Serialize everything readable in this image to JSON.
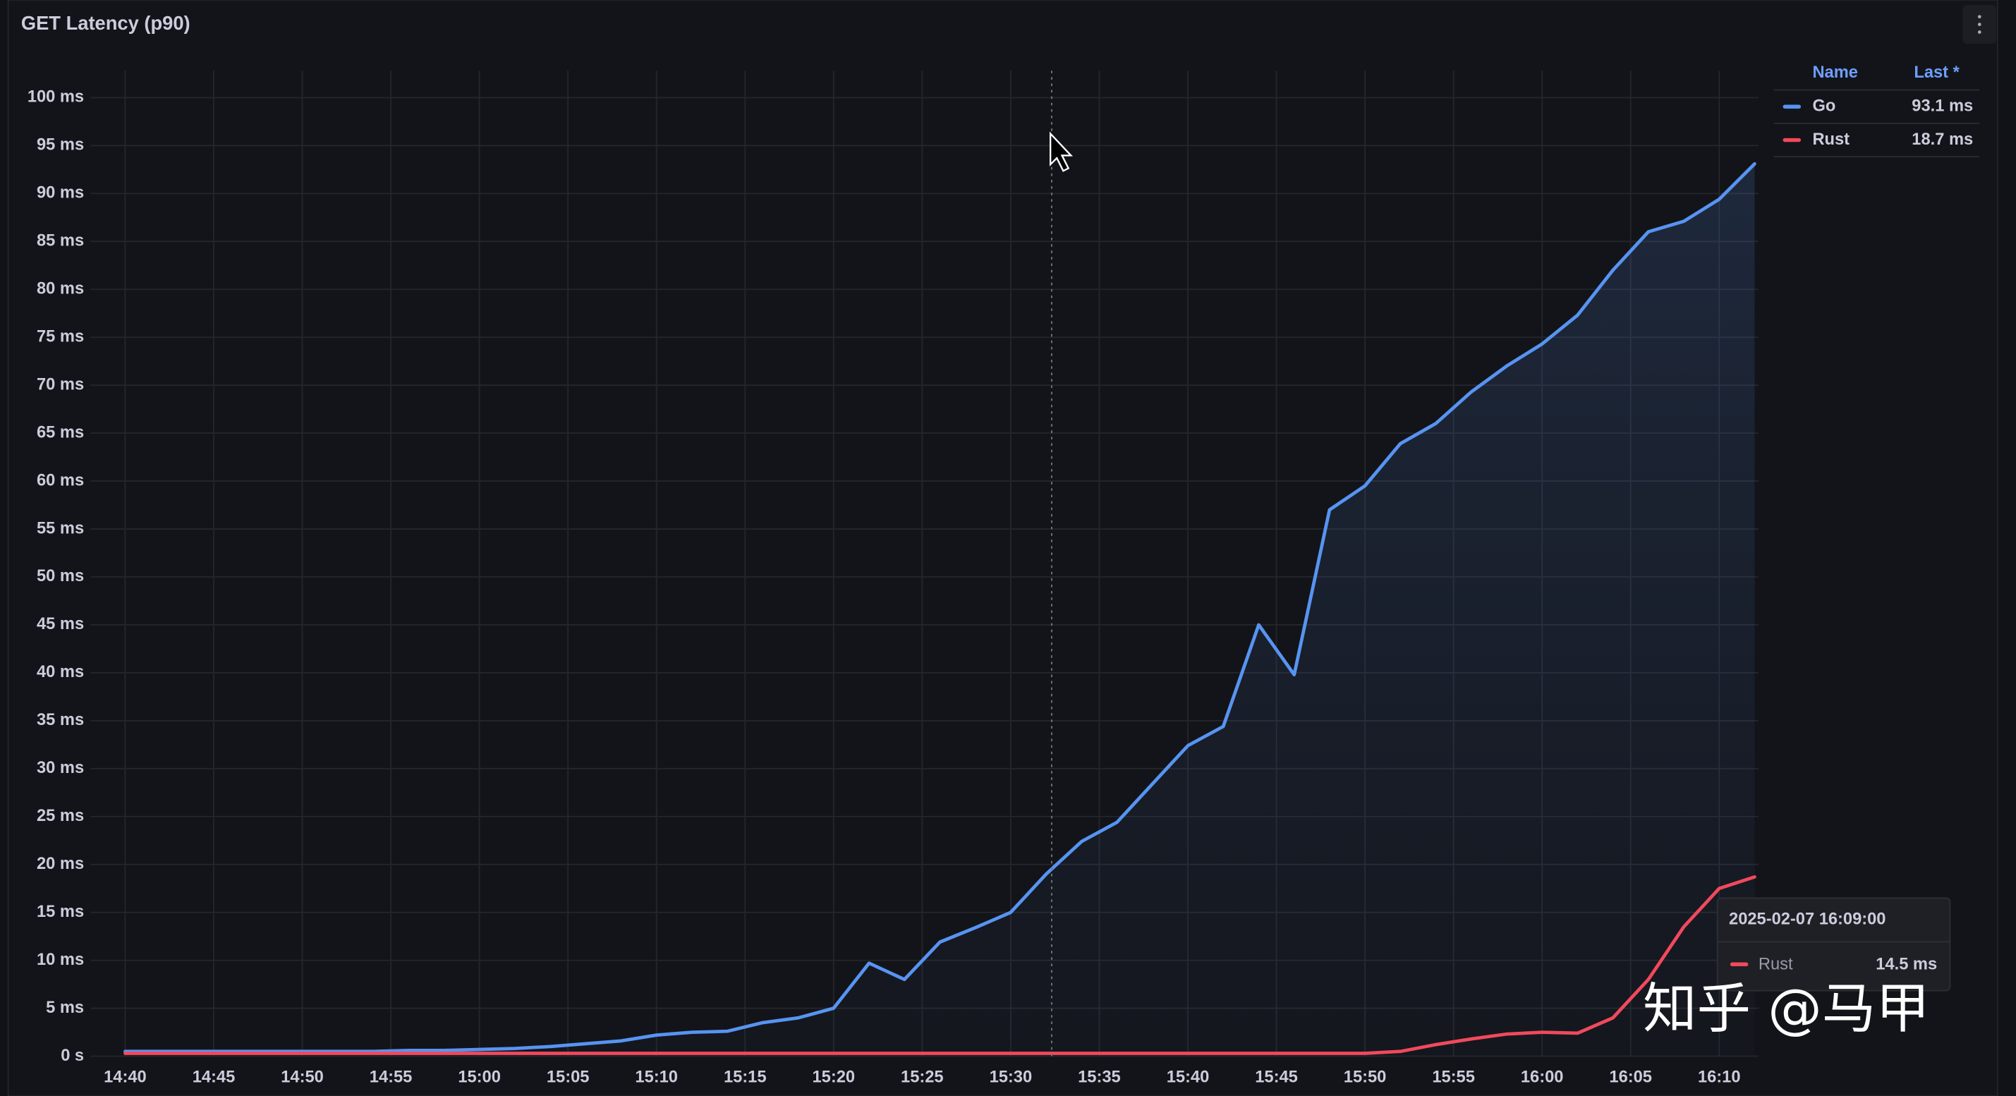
{
  "chart_data": {
    "type": "line",
    "title": "GET Latency (p90)",
    "x": [
      "14:40",
      "14:42",
      "14:44",
      "14:46",
      "14:48",
      "14:50",
      "14:52",
      "14:54",
      "14:56",
      "14:58",
      "15:00",
      "15:02",
      "15:04",
      "15:06",
      "15:08",
      "15:10",
      "15:12",
      "15:14",
      "15:16",
      "15:18",
      "15:20",
      "15:22",
      "15:24",
      "15:26",
      "15:28",
      "15:30",
      "15:32",
      "15:34",
      "15:36",
      "15:38",
      "15:40",
      "15:42",
      "15:44",
      "15:46",
      "15:48",
      "15:50",
      "15:52",
      "15:54",
      "15:56",
      "15:58",
      "16:00",
      "16:02",
      "16:04",
      "16:06",
      "16:08",
      "16:10",
      "16:12"
    ],
    "xlim": [
      "14:40",
      "16:12"
    ],
    "xticks": [
      "14:40",
      "14:45",
      "14:50",
      "14:55",
      "15:00",
      "15:05",
      "15:10",
      "15:15",
      "15:20",
      "15:25",
      "15:30",
      "15:35",
      "15:40",
      "15:45",
      "15:50",
      "15:55",
      "16:00",
      "16:05",
      "16:10"
    ],
    "ylim": [
      0,
      100
    ],
    "yticks": [
      {
        "value": 0,
        "label": "0 s"
      },
      {
        "value": 5,
        "label": "5 ms"
      },
      {
        "value": 10,
        "label": "10 ms"
      },
      {
        "value": 15,
        "label": "15 ms"
      },
      {
        "value": 20,
        "label": "20 ms"
      },
      {
        "value": 25,
        "label": "25 ms"
      },
      {
        "value": 30,
        "label": "30 ms"
      },
      {
        "value": 35,
        "label": "35 ms"
      },
      {
        "value": 40,
        "label": "40 ms"
      },
      {
        "value": 45,
        "label": "45 ms"
      },
      {
        "value": 50,
        "label": "50 ms"
      },
      {
        "value": 55,
        "label": "55 ms"
      },
      {
        "value": 60,
        "label": "60 ms"
      },
      {
        "value": 65,
        "label": "65 ms"
      },
      {
        "value": 70,
        "label": "70 ms"
      },
      {
        "value": 75,
        "label": "75 ms"
      },
      {
        "value": 80,
        "label": "80 ms"
      },
      {
        "value": 85,
        "label": "85 ms"
      },
      {
        "value": 90,
        "label": "90 ms"
      },
      {
        "value": 95,
        "label": "95 ms"
      },
      {
        "value": 100,
        "label": "100 ms"
      }
    ],
    "grid": true,
    "legend_columns": [
      "Name",
      "Last *"
    ],
    "series": [
      {
        "name": "Go",
        "color": "#5794f2",
        "legend_value": "93.1 ms",
        "values": [
          0.5,
          0.5,
          0.5,
          0.5,
          0.5,
          0.5,
          0.5,
          0.5,
          0.6,
          0.6,
          0.7,
          0.8,
          1.0,
          1.3,
          1.6,
          2.2,
          2.5,
          2.6,
          3.5,
          4.0,
          5.0,
          9.7,
          8.0,
          11.9,
          13.4,
          15.0,
          19.0,
          22.4,
          24.4,
          28.4,
          32.4,
          34.4,
          45.0,
          39.8,
          57.0,
          59.5,
          63.9,
          66.0,
          69.3,
          72.0,
          74.3,
          77.3,
          82.0,
          86.0,
          87.1,
          89.4,
          93.1
        ]
      },
      {
        "name": "Rust",
        "color": "#f2495c",
        "legend_value": "18.7 ms",
        "values": [
          0.3,
          0.3,
          0.3,
          0.3,
          0.3,
          0.3,
          0.3,
          0.3,
          0.3,
          0.3,
          0.3,
          0.3,
          0.3,
          0.3,
          0.3,
          0.3,
          0.3,
          0.3,
          0.3,
          0.3,
          0.3,
          0.3,
          0.3,
          0.3,
          0.3,
          0.3,
          0.3,
          0.3,
          0.3,
          0.3,
          0.3,
          0.3,
          0.3,
          0.3,
          0.3,
          0.3,
          0.5,
          1.2,
          1.8,
          2.3,
          2.5,
          2.4,
          4.0,
          8.0,
          13.5,
          17.5,
          18.7
        ]
      }
    ],
    "tooltip": {
      "time": "2025-02-07 16:09:00",
      "series": "Rust",
      "value": "14.5 ms"
    },
    "watermark": "知乎 @马甲"
  }
}
